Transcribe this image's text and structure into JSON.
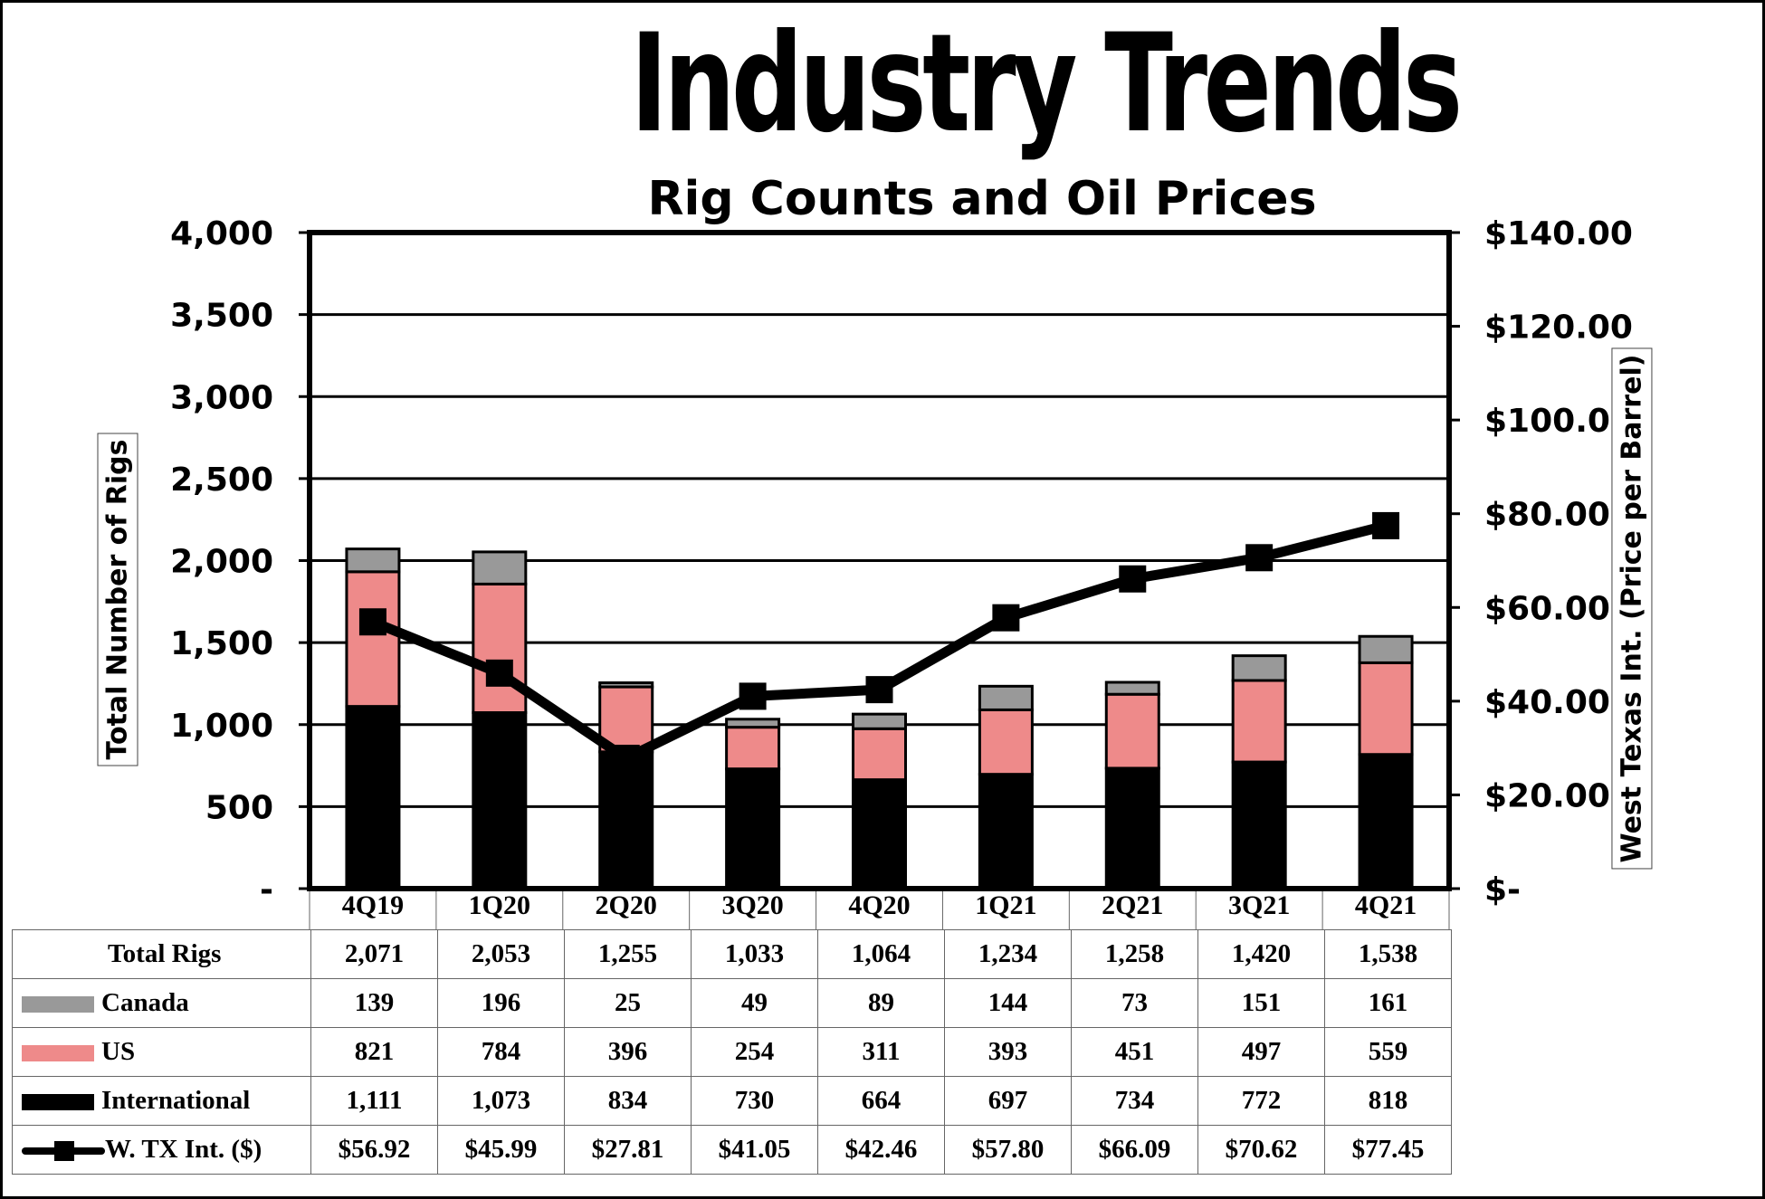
{
  "banner": "Industry Trends",
  "chart_data": {
    "type": "bar",
    "title": "Rig Counts and Oil Prices",
    "ylabel": "Total Number of Rigs",
    "y2label": "West Texas Int. (Price per Barrel)",
    "ylim": [
      0,
      4000
    ],
    "y2lim": [
      0,
      140
    ],
    "grid": true,
    "stacked": true,
    "categories": [
      "4Q19",
      "1Q20",
      "2Q20",
      "3Q20",
      "4Q20",
      "1Q21",
      "2Q21",
      "3Q21",
      "4Q21"
    ],
    "yticks": [
      "-",
      "500",
      "1,000",
      "1,500",
      "2,000",
      "2,500",
      "3,000",
      "3,500",
      "4,000"
    ],
    "y2ticks": [
      "$-",
      "$20.00",
      "$40.00",
      "$60.00",
      "$80.00",
      "$100.00",
      "$120.00",
      "$140.00"
    ],
    "series": [
      {
        "name": "International",
        "type": "bar",
        "color": "#000000",
        "values": [
          1111,
          1073,
          834,
          730,
          664,
          697,
          734,
          772,
          818
        ]
      },
      {
        "name": "US",
        "type": "bar",
        "color": "#ee8a8a",
        "values": [
          821,
          784,
          396,
          254,
          311,
          393,
          451,
          497,
          559
        ]
      },
      {
        "name": "Canada",
        "type": "bar",
        "color": "#999999",
        "values": [
          139,
          196,
          25,
          49,
          89,
          144,
          73,
          151,
          161
        ]
      },
      {
        "name": "W. TX Int. ($)",
        "type": "line",
        "axis": "right",
        "color": "#000000",
        "values": [
          56.92,
          45.99,
          27.81,
          41.05,
          42.46,
          57.8,
          66.09,
          70.62,
          77.45
        ]
      }
    ]
  },
  "table": {
    "rows": [
      {
        "label": "Total Rigs",
        "swatch": "none",
        "cells": [
          "2,071",
          "2,053",
          "1,255",
          "1,033",
          "1,064",
          "1,234",
          "1,258",
          "1,420",
          "1,538"
        ]
      },
      {
        "label": "Canada",
        "swatch": "#999999",
        "cells": [
          "139",
          "196",
          "25",
          "49",
          "89",
          "144",
          "73",
          "151",
          "161"
        ]
      },
      {
        "label": "US",
        "swatch": "#ee8a8a",
        "cells": [
          "821",
          "784",
          "396",
          "254",
          "311",
          "393",
          "451",
          "497",
          "559"
        ]
      },
      {
        "label": "International",
        "swatch": "#000000",
        "cells": [
          "1,111",
          "1,073",
          "834",
          "730",
          "664",
          "697",
          "734",
          "772",
          "818"
        ]
      },
      {
        "label": "W. TX Int. ($)",
        "swatch": "line",
        "cells": [
          "$56.92",
          "$45.99",
          "$27.81",
          "$41.05",
          "$42.46",
          "$57.80",
          "$66.09",
          "$70.62",
          "$77.45"
        ]
      }
    ]
  }
}
